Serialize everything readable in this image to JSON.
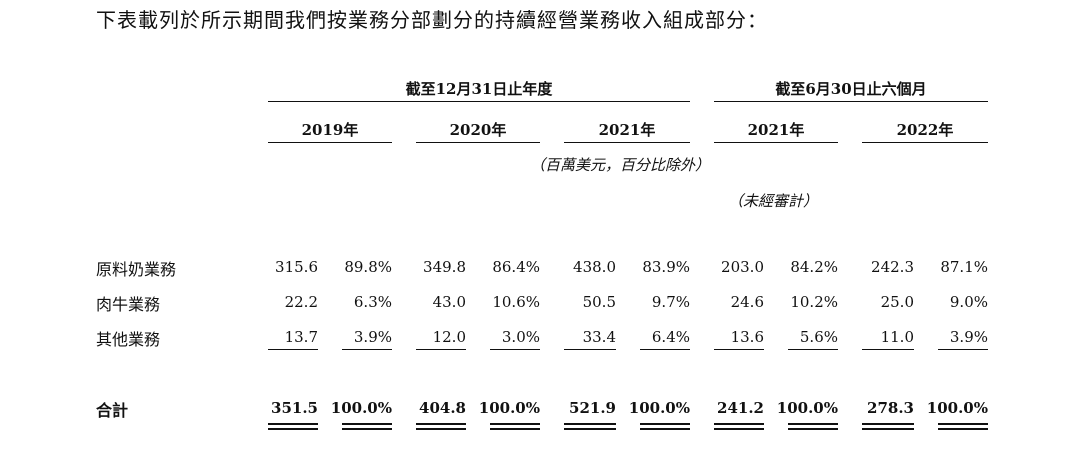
{
  "intro": "下表載列於所示期間我們按業務分部劃分的持續經營業務收入組成部分：",
  "group_headers": [
    "截至12月31日止年度",
    "截至6月30日止六個月"
  ],
  "years": [
    "2019年",
    "2020年",
    "2021年",
    "2021年",
    "2022年"
  ],
  "unit_note": "（百萬美元，百分比除外）",
  "unaudited_note": "（未經審計）",
  "rows": [
    {
      "label": "原料奶業務",
      "values": [
        "315.6",
        "89.8%",
        "349.8",
        "86.4%",
        "438.0",
        "83.9%",
        "203.0",
        "84.2%",
        "242.3",
        "87.1%"
      ]
    },
    {
      "label": "肉牛業務",
      "values": [
        "22.2",
        "6.3%",
        "43.0",
        "10.6%",
        "50.5",
        "9.7%",
        "24.6",
        "10.2%",
        "25.0",
        "9.0%"
      ]
    },
    {
      "label": "其他業務",
      "values": [
        "13.7",
        "3.9%",
        "12.0",
        "3.0%",
        "33.4",
        "6.4%",
        "13.6",
        "5.6%",
        "11.0",
        "3.9%"
      ]
    }
  ],
  "total": {
    "label": "合計",
    "values": [
      "351.5",
      "100.0%",
      "404.8",
      "100.0%",
      "521.9",
      "100.0%",
      "241.2",
      "100.0%",
      "278.3",
      "100.0%"
    ]
  }
}
